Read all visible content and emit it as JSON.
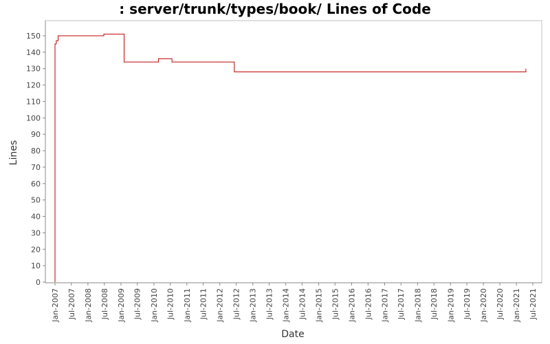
{
  "chart_data": {
    "type": "line",
    "title": ": server/trunk/types/book/ Lines of Code",
    "xlabel": "Date",
    "ylabel": "Lines",
    "ylim": [
      0,
      157
    ],
    "xlim": [
      "2006-11-15",
      "2021-07-15"
    ],
    "grid": false,
    "legend": "none",
    "step": true,
    "y_ticks": [
      0,
      10,
      20,
      30,
      40,
      50,
      60,
      70,
      80,
      90,
      100,
      110,
      120,
      130,
      140,
      150
    ],
    "x_ticks": [
      {
        "date": "2007-01-01",
        "label": "Jan-2007"
      },
      {
        "date": "2007-07-01",
        "label": "Jul-2007"
      },
      {
        "date": "2008-01-01",
        "label": "Jan-2008"
      },
      {
        "date": "2008-07-01",
        "label": "Jul-2008"
      },
      {
        "date": "2009-01-01",
        "label": "Jan-2009"
      },
      {
        "date": "2009-07-01",
        "label": "Jul-2009"
      },
      {
        "date": "2010-01-01",
        "label": "Jan-2010"
      },
      {
        "date": "2010-07-01",
        "label": "Jul-2010"
      },
      {
        "date": "2011-01-01",
        "label": "Jan-2011"
      },
      {
        "date": "2011-07-01",
        "label": "Jul-2011"
      },
      {
        "date": "2012-01-01",
        "label": "Jan-2012"
      },
      {
        "date": "2012-07-01",
        "label": "Jul-2012"
      },
      {
        "date": "2013-01-01",
        "label": "Jan-2013"
      },
      {
        "date": "2013-07-01",
        "label": "Jul-2013"
      },
      {
        "date": "2014-01-01",
        "label": "Jan-2014"
      },
      {
        "date": "2014-07-01",
        "label": "Jul-2014"
      },
      {
        "date": "2015-01-01",
        "label": "Jan-2015"
      },
      {
        "date": "2015-07-01",
        "label": "Jul-2015"
      },
      {
        "date": "2016-01-01",
        "label": "Jan-2016"
      },
      {
        "date": "2016-07-01",
        "label": "Jul-2016"
      },
      {
        "date": "2017-01-01",
        "label": "Jan-2017"
      },
      {
        "date": "2017-07-01",
        "label": "Jul-2017"
      },
      {
        "date": "2018-01-01",
        "label": "Jan-2018"
      },
      {
        "date": "2018-07-01",
        "label": "Jul-2018"
      },
      {
        "date": "2019-01-01",
        "label": "Jan-2019"
      },
      {
        "date": "2019-07-01",
        "label": "Jul-2019"
      },
      {
        "date": "2020-01-01",
        "label": "Jan-2020"
      },
      {
        "date": "2020-07-01",
        "label": "Jul-2020"
      },
      {
        "date": "2021-01-01",
        "label": "Jan-2021"
      },
      {
        "date": "2021-07-01",
        "label": "Jul-2021"
      }
    ],
    "series": [
      {
        "color": "#c00000",
        "points": [
          {
            "x": "2007-01-01",
            "y": 0
          },
          {
            "x": "2007-01-01",
            "y": 145
          },
          {
            "x": "2007-01-15",
            "y": 147
          },
          {
            "x": "2007-02-05",
            "y": 150
          },
          {
            "x": "2008-06-25",
            "y": 151
          },
          {
            "x": "2009-02-05",
            "y": 134
          },
          {
            "x": "2010-02-20",
            "y": 136
          },
          {
            "x": "2010-07-20",
            "y": 134
          },
          {
            "x": "2012-06-10",
            "y": 128
          },
          {
            "x": "2021-04-15",
            "y": 130
          }
        ]
      }
    ]
  }
}
